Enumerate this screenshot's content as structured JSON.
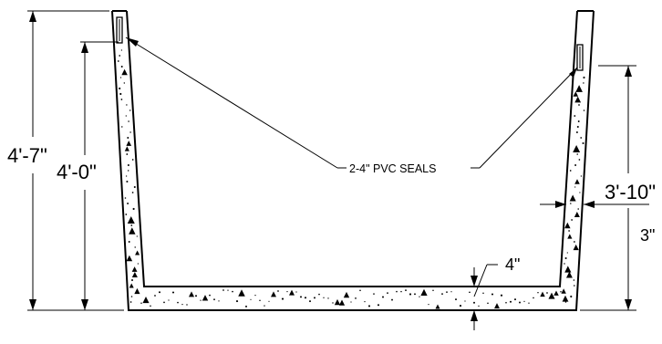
{
  "dimensions": {
    "overall_left_height": "4'-7\"",
    "inner_left_height": "4'-0\"",
    "right_height": "3'-10\"",
    "wall_thickness": "3\"",
    "floor_thickness": "4\""
  },
  "callout": {
    "label": "2-4\" PVC SEALS"
  },
  "colors": {
    "line": "#000000",
    "background": "#ffffff"
  }
}
